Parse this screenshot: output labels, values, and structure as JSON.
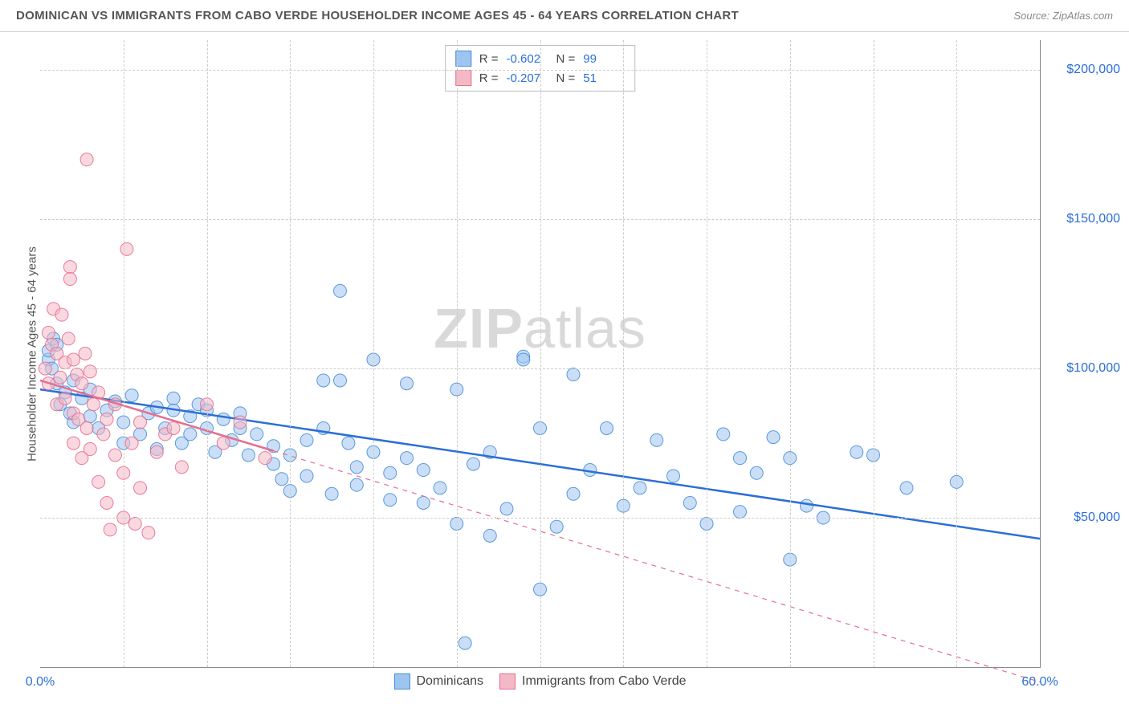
{
  "title": "DOMINICAN VS IMMIGRANTS FROM CABO VERDE HOUSEHOLDER INCOME AGES 45 - 64 YEARS CORRELATION CHART",
  "source": "Source: ZipAtlas.com",
  "watermark": {
    "bold": "ZIP",
    "rest": "atlas"
  },
  "yaxis_title": "Householder Income Ages 45 - 64 years",
  "chart": {
    "type": "scatter",
    "xlim": [
      0,
      60
    ],
    "ylim": [
      0,
      210000
    ],
    "xtick_labels": [
      {
        "value": 0,
        "label": "0.0%"
      },
      {
        "value": 60,
        "label": "60.0%"
      }
    ],
    "xtick_minor": [
      5,
      10,
      15,
      20,
      25,
      30,
      35,
      40,
      45,
      50,
      55
    ],
    "ytick_labels": [
      {
        "value": 50000,
        "label": "$50,000"
      },
      {
        "value": 100000,
        "label": "$100,000"
      },
      {
        "value": 150000,
        "label": "$150,000"
      },
      {
        "value": 200000,
        "label": "$200,000"
      }
    ],
    "ytick_label_color": "#2b6fd6",
    "xtick_label_color": "#2b6fd6",
    "grid_color": "#cccccc",
    "background_color": "#ffffff",
    "marker_radius": 8,
    "marker_opacity": 0.55,
    "marker_stroke_opacity": 0.9,
    "trendline_width": 2.5,
    "series": [
      {
        "name": "Dominicans",
        "color_fill": "#9ec5f0",
        "color_stroke": "#4a8fd6",
        "trend_color": "#2b6fd6",
        "R": "-0.602",
        "N": "99",
        "trend": {
          "x1": 0,
          "y1": 93000,
          "x2": 60,
          "y2": 43000,
          "x_solid_end": 60
        },
        "points": [
          [
            0.5,
            103000
          ],
          [
            0.5,
            106000
          ],
          [
            0.7,
            100000
          ],
          [
            0.8,
            110000
          ],
          [
            1,
            95000
          ],
          [
            1,
            108000
          ],
          [
            1.2,
            88000
          ],
          [
            1.5,
            92000
          ],
          [
            1.8,
            85000
          ],
          [
            2,
            96000
          ],
          [
            2,
            82000
          ],
          [
            2.5,
            90000
          ],
          [
            3,
            84000
          ],
          [
            3,
            93000
          ],
          [
            3.5,
            80000
          ],
          [
            4,
            86000
          ],
          [
            4.5,
            89000
          ],
          [
            5,
            82000
          ],
          [
            5,
            75000
          ],
          [
            5.5,
            91000
          ],
          [
            6,
            78000
          ],
          [
            6.5,
            85000
          ],
          [
            7,
            87000
          ],
          [
            7,
            73000
          ],
          [
            7.5,
            80000
          ],
          [
            8,
            86000
          ],
          [
            8,
            90000
          ],
          [
            8.5,
            75000
          ],
          [
            9,
            84000
          ],
          [
            9,
            78000
          ],
          [
            9.5,
            88000
          ],
          [
            10,
            86000
          ],
          [
            10,
            80000
          ],
          [
            10.5,
            72000
          ],
          [
            11,
            83000
          ],
          [
            11.5,
            76000
          ],
          [
            12,
            80000
          ],
          [
            12,
            85000
          ],
          [
            12.5,
            71000
          ],
          [
            13,
            78000
          ],
          [
            14,
            74000
          ],
          [
            14,
            68000
          ],
          [
            14.5,
            63000
          ],
          [
            15,
            71000
          ],
          [
            15,
            59000
          ],
          [
            16,
            76000
          ],
          [
            16,
            64000
          ],
          [
            17,
            96000
          ],
          [
            17,
            80000
          ],
          [
            17.5,
            58000
          ],
          [
            18,
            96000
          ],
          [
            18,
            126000
          ],
          [
            18.5,
            75000
          ],
          [
            19,
            67000
          ],
          [
            19,
            61000
          ],
          [
            20,
            72000
          ],
          [
            20,
            103000
          ],
          [
            21,
            65000
          ],
          [
            21,
            56000
          ],
          [
            22,
            95000
          ],
          [
            22,
            70000
          ],
          [
            23,
            66000
          ],
          [
            23,
            55000
          ],
          [
            24,
            60000
          ],
          [
            25,
            93000
          ],
          [
            25,
            48000
          ],
          [
            25.5,
            8000
          ],
          [
            26,
            68000
          ],
          [
            27,
            72000
          ],
          [
            27,
            44000
          ],
          [
            28,
            53000
          ],
          [
            29,
            104000
          ],
          [
            29,
            103000
          ],
          [
            30,
            80000
          ],
          [
            30,
            26000
          ],
          [
            31,
            47000
          ],
          [
            32,
            98000
          ],
          [
            32,
            58000
          ],
          [
            33,
            66000
          ],
          [
            34,
            80000
          ],
          [
            35,
            54000
          ],
          [
            36,
            60000
          ],
          [
            37,
            76000
          ],
          [
            38,
            64000
          ],
          [
            39,
            55000
          ],
          [
            40,
            48000
          ],
          [
            41,
            78000
          ],
          [
            42,
            70000
          ],
          [
            42,
            52000
          ],
          [
            43,
            65000
          ],
          [
            44,
            77000
          ],
          [
            45,
            70000
          ],
          [
            45,
            36000
          ],
          [
            46,
            54000
          ],
          [
            47,
            50000
          ],
          [
            49,
            72000
          ],
          [
            50,
            71000
          ],
          [
            52,
            60000
          ],
          [
            55,
            62000
          ]
        ]
      },
      {
        "name": "Immigrants from Cabo Verde",
        "color_fill": "#f5b8c7",
        "color_stroke": "#e56f8f",
        "trend_color": "#e56f8f",
        "R": "-0.207",
        "N": "51",
        "trend": {
          "x1": 0,
          "y1": 96000,
          "x2": 60,
          "y2": -5000,
          "x_solid_end": 14
        },
        "points": [
          [
            0.3,
            100000
          ],
          [
            0.5,
            112000
          ],
          [
            0.5,
            95000
          ],
          [
            0.7,
            108000
          ],
          [
            0.8,
            120000
          ],
          [
            1,
            105000
          ],
          [
            1,
            88000
          ],
          [
            1.2,
            97000
          ],
          [
            1.3,
            118000
          ],
          [
            1.5,
            102000
          ],
          [
            1.5,
            90000
          ],
          [
            1.7,
            110000
          ],
          [
            1.8,
            134000
          ],
          [
            1.8,
            130000
          ],
          [
            2,
            103000
          ],
          [
            2,
            85000
          ],
          [
            2,
            75000
          ],
          [
            2.2,
            98000
          ],
          [
            2.3,
            83000
          ],
          [
            2.5,
            95000
          ],
          [
            2.5,
            70000
          ],
          [
            2.7,
            105000
          ],
          [
            2.8,
            80000
          ],
          [
            2.8,
            170000
          ],
          [
            3,
            99000
          ],
          [
            3,
            73000
          ],
          [
            3.2,
            88000
          ],
          [
            3.5,
            92000
          ],
          [
            3.5,
            62000
          ],
          [
            3.8,
            78000
          ],
          [
            4,
            83000
          ],
          [
            4,
            55000
          ],
          [
            4.2,
            46000
          ],
          [
            4.5,
            71000
          ],
          [
            4.5,
            88000
          ],
          [
            5,
            65000
          ],
          [
            5,
            50000
          ],
          [
            5.2,
            140000
          ],
          [
            5.5,
            75000
          ],
          [
            5.7,
            48000
          ],
          [
            6,
            82000
          ],
          [
            6,
            60000
          ],
          [
            6.5,
            45000
          ],
          [
            7,
            72000
          ],
          [
            7.5,
            78000
          ],
          [
            8,
            80000
          ],
          [
            8.5,
            67000
          ],
          [
            10,
            88000
          ],
          [
            11,
            75000
          ],
          [
            12,
            82000
          ],
          [
            13.5,
            70000
          ]
        ]
      }
    ],
    "legend_top": {
      "rows": [
        {
          "series": 0
        },
        {
          "series": 1
        }
      ]
    }
  }
}
